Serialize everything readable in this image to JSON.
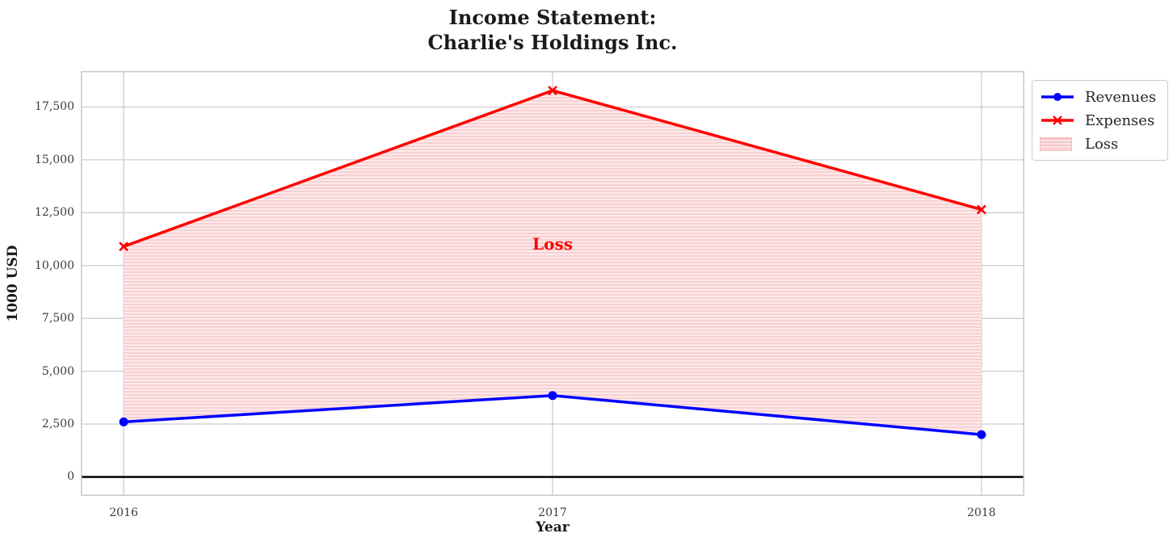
{
  "title": {
    "line1": "Income Statement:",
    "line2": "Charlie's Holdings Inc."
  },
  "chart_data": {
    "type": "line",
    "title": "Income Statement:\nCharlie's Holdings Inc.",
    "xlabel": "Year",
    "ylabel": "1000 USD",
    "x": [
      2016,
      2017,
      2018
    ],
    "xtick_labels": [
      "2016",
      "2017",
      "2018"
    ],
    "yticks": [
      0,
      2500,
      5000,
      7500,
      10000,
      12500,
      15000,
      17500
    ],
    "ytick_labels": [
      "0",
      "2,500",
      "5,000",
      "7,500",
      "10,000",
      "12,500",
      "15,000",
      "17,500"
    ],
    "xlim": [
      2015.9,
      2018.1
    ],
    "ylim": [
      -900,
      19200
    ],
    "grid": true,
    "grid_color": "#cccccc",
    "zero_line": true,
    "zero_line_color": "#000000",
    "legend_position": "outside upper right",
    "series": [
      {
        "name": "Revenues",
        "values": [
          2600,
          3850,
          2000
        ],
        "color": "#0000ff",
        "marker": "circle"
      },
      {
        "name": "Expenses",
        "values": [
          10900,
          18280,
          12650
        ],
        "color": "#ff0000",
        "marker": "x"
      }
    ],
    "loss_region": {
      "label": "Loss",
      "between": [
        "Expenses",
        "Revenues"
      ],
      "facecolor": "#fdeaea",
      "hatch_color": "#f8d0d3",
      "hatch_style": "horizontal-lines"
    },
    "annotation": {
      "text": "Loss",
      "x": 2017,
      "y": 11000,
      "color": "#ff0000"
    }
  }
}
